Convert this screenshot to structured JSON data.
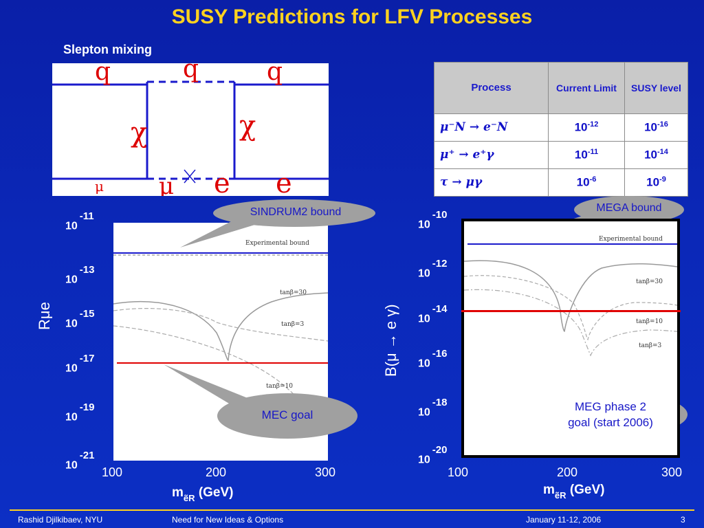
{
  "slide": {
    "title": "SUSY Predictions for LFV Processes",
    "subtitle": "Slepton mixing",
    "page_number": "3"
  },
  "diagram": {
    "labels": {
      "q1": "q",
      "q2": "q",
      "q3": "q",
      "chi1": "χ",
      "chi2": "χ",
      "mu_small": "μ",
      "mu_large": "μ",
      "e1": "e",
      "e2": "e"
    }
  },
  "table": {
    "headers": [
      "Process",
      "Current Limit",
      "SUSY level"
    ],
    "rows": [
      {
        "process": "μ⁻N → e⁻N",
        "limit_base": "10",
        "limit_exp": "-12",
        "susy_base": "10",
        "susy_exp": "-16"
      },
      {
        "process": "μ⁺ → e⁺γ",
        "limit_base": "10",
        "limit_exp": "-11",
        "susy_base": "10",
        "susy_exp": "-14"
      },
      {
        "process": "τ → μγ",
        "limit_base": "10",
        "limit_exp": "-6",
        "susy_base": "10",
        "susy_exp": "-9"
      }
    ]
  },
  "plot_left": {
    "ylabel": "Rμe",
    "xlabel_main": "m",
    "xlabel_sub": "ẽR",
    "xlabel_unit": "(GeV)",
    "y_ticks": [
      {
        "base": "10",
        "exp": "-11"
      },
      {
        "base": "10",
        "exp": "-13"
      },
      {
        "base": "10",
        "exp": "-15"
      },
      {
        "base": "10",
        "exp": "-17"
      },
      {
        "base": "10",
        "exp": "-19"
      },
      {
        "base": "10",
        "exp": "-21"
      }
    ],
    "x_ticks": [
      "100",
      "200",
      "300"
    ],
    "annotations": {
      "experimental": "Experimental bound",
      "tb30": "tanβ=30",
      "tb3": "tanβ=3",
      "tb10": "tanβ=10"
    },
    "callouts": {
      "bound": "SINDRUM2 bound",
      "goal": "MEC goal"
    }
  },
  "plot_right": {
    "ylabel": "B(μ → e γ)",
    "xlabel_main": "m",
    "xlabel_sub": "ẽR",
    "xlabel_unit": "(GeV)",
    "y_ticks": [
      {
        "base": "10",
        "exp": "-10"
      },
      {
        "base": "10",
        "exp": "-12"
      },
      {
        "base": "10",
        "exp": "-14"
      },
      {
        "base": "10",
        "exp": "-16"
      },
      {
        "base": "10",
        "exp": "-18"
      },
      {
        "base": "10",
        "exp": "-20"
      }
    ],
    "x_ticks": [
      "100",
      "200",
      "300"
    ],
    "annotations": {
      "experimental": "Experimental bound",
      "tb30": "tanβ=30",
      "tb10": "tanβ=10",
      "tb3": "tanβ=3"
    },
    "callouts": {
      "bound": "MEGA bound",
      "goal_line1": "MEG phase 2",
      "goal_line2": "goal (start 2006)"
    }
  },
  "footer": {
    "author": "Rashid Djilkibaev, NYU",
    "talk": "Need for New Ideas & Options",
    "date": "January 11-12, 2006"
  },
  "colors": {
    "title": "#ffd21f",
    "line_blue": "#1a1acc",
    "line_red": "#e00000",
    "callout": "#9a9a9a"
  }
}
